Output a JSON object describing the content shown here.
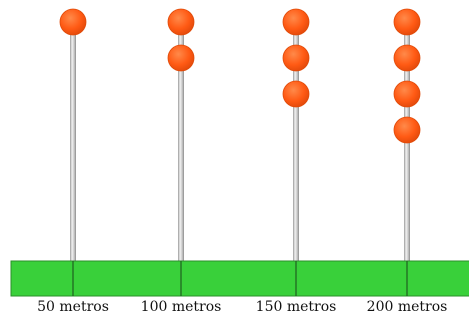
{
  "colors": {
    "ground": "#39d03a",
    "ground_stroke": "#2a8f2a",
    "bead": "#ff5a14",
    "bead_stroke": "#e04a08",
    "pole": "#cfcfcf"
  },
  "poles": [
    {
      "label": "50 metros",
      "beads": 1
    },
    {
      "label": "100 metros",
      "beads": 2
    },
    {
      "label": "150 metros",
      "beads": 3
    },
    {
      "label": "200 metros",
      "beads": 4
    }
  ]
}
